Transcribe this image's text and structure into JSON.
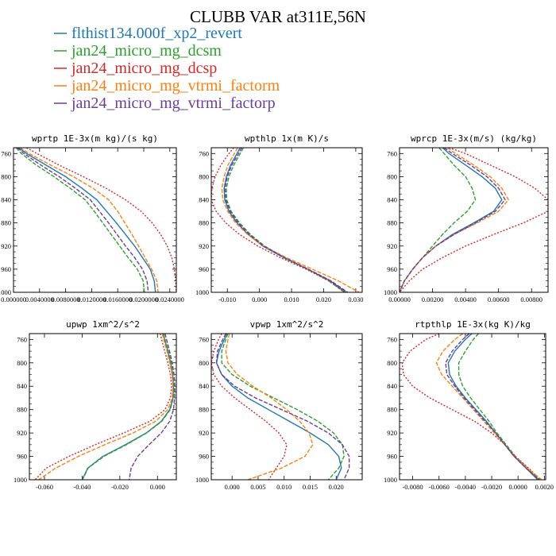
{
  "figure": {
    "title": "CLUBB VAR at311E,56N"
  },
  "legend": [
    {
      "name": "flthist134.000f_xp2_revert",
      "color": "#1f77b4",
      "dash": "solid"
    },
    {
      "name": "jan24_micro_mg_dcsm",
      "color": "#2ca02c",
      "dash": "dash"
    },
    {
      "name": "jan24_micro_mg_dcsp",
      "color": "#d62728",
      "dash": "dot"
    },
    {
      "name": "jan24_micro_mg_vtrmi_factorm",
      "color": "#ff7f0e",
      "dash": "dash"
    },
    {
      "name": "jan24_micro_mg_vtrmi_factorp",
      "color": "#6a3d9a",
      "dash": "dash"
    }
  ],
  "chart_data": [
    {
      "type": "line",
      "title": "wprtp  1E-3x(m kg)/(s kg)",
      "xlim": [
        0.0,
        0.025
      ],
      "ylim": [
        1000,
        750
      ],
      "yticks": [
        "760",
        "800",
        "840",
        "880",
        "920",
        "960",
        "1000"
      ],
      "xticks": [
        "0.000000",
        "0.0040000",
        "0.0080000",
        "0.0120000",
        "0.0160000",
        "0.0200000",
        "0.0240000"
      ],
      "y": [
        750,
        760,
        780,
        800,
        820,
        840,
        860,
        880,
        900,
        920,
        940,
        960,
        980,
        1000
      ],
      "series": [
        {
          "name": "flthist134.000f_xp2_revert",
          "x": [
            0.0008,
            0.002,
            0.005,
            0.008,
            0.0105,
            0.0128,
            0.0143,
            0.0158,
            0.0172,
            0.0186,
            0.0198,
            0.021,
            0.0216,
            0.0218
          ]
        },
        {
          "name": "jan24_micro_mg_dcsm",
          "x": [
            0.0004,
            0.0012,
            0.0035,
            0.0062,
            0.0087,
            0.011,
            0.0124,
            0.0137,
            0.015,
            0.0163,
            0.0176,
            0.019,
            0.0199,
            0.0201
          ]
        },
        {
          "name": "jan24_micro_mg_dcsp",
          "x": [
            0.002,
            0.0036,
            0.007,
            0.0107,
            0.0142,
            0.0172,
            0.0196,
            0.0213,
            0.0226,
            0.0236,
            0.0243,
            0.0247,
            0.0249,
            0.025
          ]
        },
        {
          "name": "jan24_micro_mg_vtrmi_factorm",
          "x": [
            0.001,
            0.0024,
            0.0057,
            0.0092,
            0.0122,
            0.0146,
            0.016,
            0.0171,
            0.0182,
            0.0192,
            0.0202,
            0.0212,
            0.022,
            0.0222
          ]
        },
        {
          "name": "jan24_micro_mg_vtrmi_factorp",
          "x": [
            0.0006,
            0.0016,
            0.0042,
            0.007,
            0.0095,
            0.0118,
            0.0132,
            0.0146,
            0.0159,
            0.0172,
            0.0186,
            0.0198,
            0.0205,
            0.0207
          ]
        }
      ]
    },
    {
      "type": "line",
      "title": "wpthlp  1x(m K)/s",
      "xlim": [
        -0.015,
        0.032
      ],
      "ylim": [
        1000,
        750
      ],
      "yticks": [
        "760",
        "800",
        "840",
        "880",
        "920",
        "960",
        "1000"
      ],
      "xticks": [
        "-0.010",
        "0.000",
        "0.010",
        "0.020",
        "0.030"
      ],
      "y": [
        750,
        760,
        780,
        800,
        820,
        840,
        860,
        880,
        900,
        920,
        940,
        960,
        980,
        1000
      ],
      "series": [
        {
          "name": "flthist134.000f_xp2_revert",
          "x": [
            -0.006,
            -0.007,
            -0.009,
            -0.0103,
            -0.011,
            -0.0108,
            -0.0095,
            -0.007,
            -0.0035,
            0.001,
            0.0075,
            0.015,
            0.022,
            0.027
          ]
        },
        {
          "name": "jan24_micro_mg_dcsm",
          "x": [
            -0.005,
            -0.006,
            -0.008,
            -0.0095,
            -0.0103,
            -0.0102,
            -0.0088,
            -0.0062,
            -0.0028,
            0.0016,
            0.0078,
            0.015,
            0.0215,
            0.0265
          ]
        },
        {
          "name": "jan24_micro_mg_dcsp",
          "x": [
            -0.008,
            -0.0095,
            -0.012,
            -0.0138,
            -0.0148,
            -0.015,
            -0.0135,
            -0.0105,
            -0.0062,
            -0.0005,
            0.0065,
            0.0145,
            0.0215,
            0.0265
          ]
        },
        {
          "name": "jan24_micro_mg_vtrmi_factorm",
          "x": [
            -0.0068,
            -0.0078,
            -0.0098,
            -0.011,
            -0.0117,
            -0.0114,
            -0.0099,
            -0.0074,
            -0.0037,
            0.0012,
            0.0084,
            0.0165,
            0.0245,
            0.031
          ]
        },
        {
          "name": "jan24_micro_mg_vtrmi_factorp",
          "x": [
            -0.0055,
            -0.0065,
            -0.0086,
            -0.01,
            -0.0107,
            -0.0105,
            -0.0091,
            -0.0066,
            -0.0031,
            0.0013,
            0.0078,
            0.0152,
            0.0222,
            0.0275
          ]
        }
      ]
    },
    {
      "type": "line",
      "title": "wprcp  1E-3x(m/s) (kg/kg)",
      "xlim": [
        0.0,
        0.009
      ],
      "ylim": [
        1000,
        750
      ],
      "yticks": [
        "760",
        "800",
        "840",
        "880",
        "920",
        "960",
        "1000"
      ],
      "xticks": [
        "0.00000",
        "0.00200",
        "0.00400",
        "0.00600",
        "0.00800"
      ],
      "y": [
        750,
        760,
        780,
        800,
        820,
        840,
        860,
        880,
        900,
        920,
        940,
        960,
        980,
        1000
      ],
      "series": [
        {
          "name": "flthist134.000f_xp2_revert",
          "x": [
            0.0026,
            0.003,
            0.004,
            0.005,
            0.0058,
            0.0062,
            0.0057,
            0.0045,
            0.0032,
            0.0022,
            0.0014,
            0.0008,
            0.0003,
            0.0
          ]
        },
        {
          "name": "jan24_micro_mg_dcsm",
          "x": [
            0.0024,
            0.0027,
            0.0033,
            0.004,
            0.0044,
            0.0046,
            0.0041,
            0.0033,
            0.0026,
            0.002,
            0.0014,
            0.0008,
            0.0003,
            0.0
          ]
        },
        {
          "name": "jan24_micro_mg_dcsp",
          "x": [
            0.003,
            0.004,
            0.0055,
            0.007,
            0.0082,
            0.009,
            0.009,
            0.0075,
            0.0057,
            0.004,
            0.0026,
            0.0014,
            0.0006,
            0.0
          ]
        },
        {
          "name": "jan24_micro_mg_vtrmi_factorm",
          "x": [
            0.0029,
            0.0034,
            0.0045,
            0.0055,
            0.0062,
            0.0066,
            0.006,
            0.0047,
            0.0033,
            0.0022,
            0.0014,
            0.0008,
            0.0003,
            0.0
          ]
        },
        {
          "name": "jan24_micro_mg_vtrmi_factorp",
          "x": [
            0.0027,
            0.0032,
            0.0043,
            0.0053,
            0.006,
            0.0064,
            0.0058,
            0.0046,
            0.0033,
            0.0022,
            0.0014,
            0.0008,
            0.0003,
            0.0
          ]
        }
      ]
    },
    {
      "type": "line",
      "title": "upwp  1xm^2/s^2",
      "xlim": [
        -0.068,
        0.01
      ],
      "ylim": [
        1000,
        750
      ],
      "yticks": [
        "760",
        "800",
        "840",
        "880",
        "920",
        "960",
        "1000"
      ],
      "xticks": [
        "-0.060",
        "-0.040",
        "-0.020",
        "0.000"
      ],
      "y": [
        750,
        760,
        780,
        800,
        820,
        840,
        860,
        880,
        900,
        920,
        940,
        960,
        980,
        1000
      ],
      "series": [
        {
          "name": "flthist134.000f_xp2_revert",
          "x": [
            0.003,
            0.0038,
            0.0055,
            0.007,
            0.008,
            0.0085,
            0.0082,
            0.0065,
            0.002,
            -0.006,
            -0.017,
            -0.029,
            -0.037,
            -0.04
          ]
        },
        {
          "name": "jan24_micro_mg_dcsm",
          "x": [
            0.0032,
            0.004,
            0.0057,
            0.0072,
            0.0082,
            0.0087,
            0.0084,
            0.0068,
            0.0023,
            -0.0058,
            -0.0165,
            -0.0285,
            -0.0368,
            -0.0398
          ]
        },
        {
          "name": "jan24_micro_mg_dcsp",
          "x": [
            0.0015,
            0.0022,
            0.0038,
            0.0055,
            0.0068,
            0.0075,
            0.0068,
            0.004,
            -0.004,
            -0.018,
            -0.033,
            -0.047,
            -0.059,
            -0.065
          ]
        },
        {
          "name": "jan24_micro_mg_vtrmi_factorm",
          "x": [
            0.0025,
            0.0033,
            0.005,
            0.0065,
            0.0077,
            0.0082,
            0.0078,
            0.0055,
            -0.001,
            -0.013,
            -0.028,
            -0.042,
            -0.054,
            -0.063
          ]
        },
        {
          "name": "jan24_micro_mg_vtrmi_factorp",
          "x": [
            0.004,
            0.0048,
            0.0064,
            0.0078,
            0.0088,
            0.0092,
            0.0091,
            0.0085,
            0.0065,
            0.002,
            -0.0045,
            -0.0105,
            -0.014,
            -0.015
          ]
        }
      ]
    },
    {
      "type": "line",
      "title": "vpwp  1xm^2/s^2",
      "xlim": [
        -0.004,
        0.025
      ],
      "ylim": [
        1000,
        750
      ],
      "yticks": [
        "760",
        "800",
        "840",
        "880",
        "920",
        "960",
        "1000"
      ],
      "xticks": [
        "0.000",
        "0.005",
        "0.010",
        "0.015",
        "0.020"
      ],
      "y": [
        750,
        760,
        780,
        800,
        820,
        840,
        860,
        880,
        900,
        920,
        940,
        960,
        980,
        1000
      ],
      "series": [
        {
          "name": "flthist134.000f_xp2_revert",
          "x": [
            -0.001,
            -0.0015,
            -0.0025,
            -0.003,
            -0.002,
            0.0,
            0.003,
            0.007,
            0.011,
            0.015,
            0.0185,
            0.0205,
            0.021,
            0.02
          ]
        },
        {
          "name": "jan24_micro_mg_dcsm",
          "x": [
            -0.0008,
            -0.0012,
            -0.002,
            -0.002,
            0.0,
            0.0035,
            0.008,
            0.0125,
            0.0165,
            0.0195,
            0.0212,
            0.0215,
            0.0205,
            0.0185
          ]
        },
        {
          "name": "jan24_micro_mg_dcsp",
          "x": [
            -0.002,
            -0.0026,
            -0.0035,
            -0.004,
            -0.0035,
            -0.002,
            0.0005,
            0.0035,
            0.0065,
            0.009,
            0.0105,
            0.01,
            0.0085,
            0.007
          ]
        },
        {
          "name": "jan24_micro_mg_vtrmi_factorm",
          "x": [
            -0.0005,
            -0.0008,
            -0.0012,
            -0.0008,
            0.001,
            0.004,
            0.0075,
            0.0105,
            0.013,
            0.0148,
            0.0155,
            0.014,
            0.0095,
            0.003
          ]
        },
        {
          "name": "jan24_micro_mg_vtrmi_factorp",
          "x": [
            -0.0012,
            -0.0018,
            -0.0028,
            -0.003,
            -0.002,
            0.0005,
            0.0045,
            0.0095,
            0.0145,
            0.0185,
            0.0212,
            0.0225,
            0.0225,
            0.0215
          ]
        }
      ]
    },
    {
      "type": "line",
      "title": "rtpthlp  1E-3x(kg K)/kg",
      "xlim": [
        -0.009,
        0.0021
      ],
      "ylim": [
        1000,
        750
      ],
      "yticks": [
        "760",
        "800",
        "840",
        "880",
        "920",
        "960",
        "1000"
      ],
      "xticks": [
        "-0.0080",
        "-0.0060",
        "-0.0040",
        "-0.0020",
        "0.0000",
        "0.0020"
      ],
      "y": [
        750,
        760,
        780,
        800,
        820,
        840,
        860,
        880,
        900,
        920,
        940,
        960,
        980,
        1000
      ],
      "series": [
        {
          "name": "flthist134.000f_xp2_revert",
          "x": [
            -0.0035,
            -0.004,
            -0.0048,
            -0.0053,
            -0.0052,
            -0.0047,
            -0.004,
            -0.0032,
            -0.0024,
            -0.0017,
            -0.001,
            -0.0003,
            0.0006,
            0.0015
          ]
        },
        {
          "name": "jan24_micro_mg_dcsm",
          "x": [
            -0.003,
            -0.0034,
            -0.004,
            -0.0045,
            -0.0045,
            -0.0042,
            -0.0036,
            -0.0029,
            -0.0022,
            -0.0016,
            -0.0009,
            -0.0002,
            0.0007,
            0.0016
          ]
        },
        {
          "name": "jan24_micro_mg_dcsp",
          "x": [
            -0.006,
            -0.007,
            -0.0082,
            -0.0088,
            -0.0087,
            -0.008,
            -0.0067,
            -0.005,
            -0.0033,
            -0.002,
            -0.001,
            -0.0002,
            0.0008,
            0.0017
          ]
        },
        {
          "name": "jan24_micro_mg_vtrmi_factorm",
          "x": [
            -0.0042,
            -0.0048,
            -0.0057,
            -0.0062,
            -0.0058,
            -0.005,
            -0.0042,
            -0.0034,
            -0.0026,
            -0.0018,
            -0.001,
            -0.0003,
            0.0007,
            0.0018
          ]
        },
        {
          "name": "jan24_micro_mg_vtrmi_factorp",
          "x": [
            -0.0037,
            -0.0042,
            -0.005,
            -0.0055,
            -0.0054,
            -0.0048,
            -0.0041,
            -0.0033,
            -0.0025,
            -0.0017,
            -0.001,
            -0.0003,
            0.0006,
            0.0016
          ]
        }
      ]
    }
  ]
}
